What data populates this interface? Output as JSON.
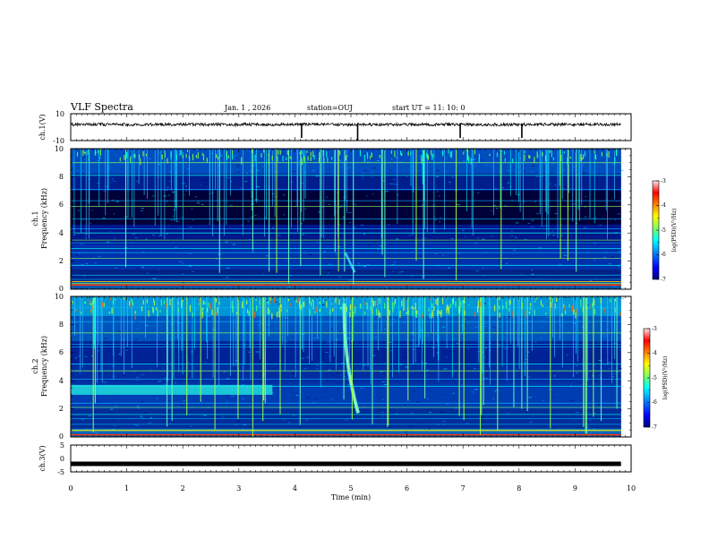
{
  "header": {
    "title": "VLF Spectra",
    "date": "Jan. 1 , 2026",
    "station": "station=OUJ",
    "start": "start UT =  11: 10: 0"
  },
  "chart_data": {
    "type": "heatmap",
    "x_axis": {
      "label": "Time (min)",
      "range": [
        0,
        10
      ],
      "ticks": [
        "0",
        "1",
        "2",
        "3",
        "4",
        "5",
        "6",
        "7",
        "8",
        "9",
        "10"
      ]
    },
    "waveform_top": {
      "ylabel": "ch.1(V)",
      "range": [
        -10,
        10
      ],
      "ticks": [
        "10",
        "-10"
      ],
      "baseline": 2,
      "spike_times_min": [
        4.12,
        5.12,
        6.95,
        8.05
      ]
    },
    "waveform_bottom": {
      "ylabel": "ch.3(V)",
      "range": [
        -5,
        5
      ],
      "ticks": [
        "5",
        "0",
        "-5"
      ],
      "level": -2
    },
    "spectrogram_ch1": {
      "ylabel": "ch.1\nFrequency (kHz)",
      "ylabel_lines": [
        "ch.1",
        "Frequency (kHz)"
      ],
      "ylim": [
        0,
        10
      ],
      "ticks": [
        "0",
        "2",
        "4",
        "6",
        "8",
        "10"
      ],
      "data_end_min": 9.82,
      "features": "broadband sferics; horizontal interference lines; dark band 4.5-7 kHz"
    },
    "spectrogram_ch2": {
      "ylabel": "ch.2\nFrequency (kHz)",
      "ylabel_lines": [
        "ch.2",
        "Frequency (kHz)"
      ],
      "ylim": [
        0,
        10
      ],
      "ticks": [
        "0",
        "2",
        "4",
        "6",
        "8",
        "10"
      ],
      "data_end_min": 9.82,
      "features": "band 3-3.7 kHz until 3.6 min; dispersive tweek descending near 4.9-5.1 min"
    },
    "colorbar": {
      "label": "log(PSD)(V²/Hz)",
      "range": [
        -7,
        -3
      ],
      "ticks": [
        "-3",
        "-4",
        "-5",
        "-6",
        "-7"
      ],
      "colormap": [
        "#000080",
        "#0000ff",
        "#00a0ff",
        "#00ffff",
        "#80ff80",
        "#ffff00",
        "#ff8000",
        "#ff0000",
        "#ffe0e0"
      ]
    }
  }
}
